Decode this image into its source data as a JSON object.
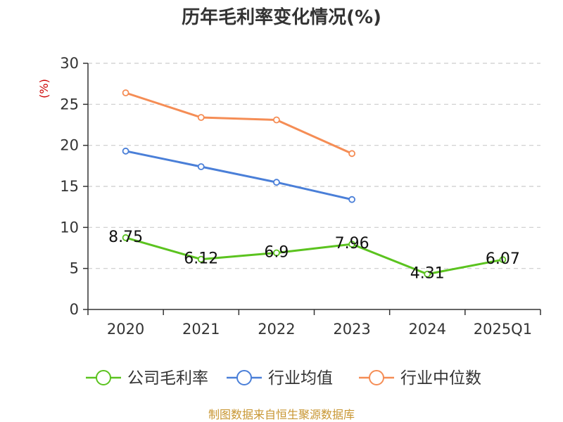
{
  "chart_data": {
    "type": "line",
    "title": "历年毛利率变化情况(%)",
    "ylabel": "(%)",
    "xlabel": "",
    "categories": [
      "2020",
      "2021",
      "2022",
      "2023",
      "2024",
      "2025Q1"
    ],
    "ylim": [
      0,
      30
    ],
    "yticks": [
      0,
      5,
      10,
      15,
      20,
      25,
      30
    ],
    "grid": true,
    "legend_position": "bottom",
    "series": [
      {
        "name": "公司毛利率",
        "color": "#5bc31f",
        "values": [
          8.75,
          6.12,
          6.9,
          7.96,
          4.31,
          6.07
        ],
        "labels": [
          "8.75",
          "6.12",
          "6.9",
          "7.96",
          "4.31",
          "6.07"
        ]
      },
      {
        "name": "行业均值",
        "color": "#4a7fd8",
        "values": [
          19.3,
          17.4,
          15.5,
          13.4,
          null,
          null
        ]
      },
      {
        "name": "行业中位数",
        "color": "#f58d55",
        "values": [
          26.4,
          23.4,
          23.1,
          19.0,
          null,
          null
        ]
      }
    ]
  },
  "source": {
    "text": "制图数据来自恒生聚源数据库",
    "color": "#c89632"
  },
  "colors": {
    "unit_label": "#cc0000",
    "axis": "#333333",
    "grid": "#cccccc"
  }
}
